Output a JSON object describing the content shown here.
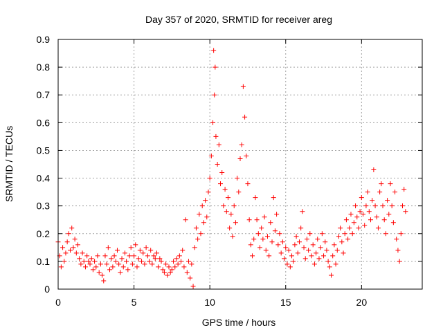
{
  "chart_data": {
    "type": "scatter",
    "title": "Day 357 of 2020, SRMTID for receiver areg",
    "xlabel": "GPS time / hours",
    "ylabel": "SRMTID / TECUs",
    "xlim": [
      0,
      24
    ],
    "ylim": [
      0,
      0.9
    ],
    "xticks": [
      0,
      5,
      10,
      15,
      20
    ],
    "xtick_labels": [
      "0",
      "5",
      "10",
      "15",
      "20"
    ],
    "yticks": [
      0,
      0.1,
      0.2,
      0.3,
      0.4,
      0.5,
      0.6,
      0.7,
      0.8,
      0.9
    ],
    "ytick_labels": [
      "0",
      "0.1",
      "0.2",
      "0.3",
      "0.4",
      "0.5",
      "0.6",
      "0.7",
      "0.8",
      "0.9"
    ],
    "grid": true,
    "marker": "+",
    "color": "#ff0000",
    "series": [
      {
        "name": "SRMTID",
        "points": [
          [
            0.0,
            0.17
          ],
          [
            0.1,
            0.12
          ],
          [
            0.2,
            0.08
          ],
          [
            0.3,
            0.15
          ],
          [
            0.4,
            0.1
          ],
          [
            0.5,
            0.13
          ],
          [
            0.6,
            0.17
          ],
          [
            0.7,
            0.2
          ],
          [
            0.8,
            0.14
          ],
          [
            0.9,
            0.22
          ],
          [
            1.0,
            0.15
          ],
          [
            1.1,
            0.18
          ],
          [
            1.2,
            0.13
          ],
          [
            1.3,
            0.16
          ],
          [
            1.4,
            0.11
          ],
          [
            1.5,
            0.09
          ],
          [
            1.6,
            0.13
          ],
          [
            1.7,
            0.1
          ],
          [
            1.8,
            0.08
          ],
          [
            1.9,
            0.12
          ],
          [
            2.0,
            0.1
          ],
          [
            2.1,
            0.09
          ],
          [
            2.2,
            0.11
          ],
          [
            2.3,
            0.07
          ],
          [
            2.4,
            0.1
          ],
          [
            2.5,
            0.08
          ],
          [
            2.6,
            0.12
          ],
          [
            2.7,
            0.06
          ],
          [
            2.8,
            0.09
          ],
          [
            2.9,
            0.05
          ],
          [
            3.0,
            0.03
          ],
          [
            3.1,
            0.12
          ],
          [
            3.2,
            0.09
          ],
          [
            3.3,
            0.15
          ],
          [
            3.4,
            0.07
          ],
          [
            3.5,
            0.11
          ],
          [
            3.6,
            0.08
          ],
          [
            3.7,
            0.12
          ],
          [
            3.8,
            0.1
          ],
          [
            3.9,
            0.14
          ],
          [
            4.0,
            0.09
          ],
          [
            4.1,
            0.06
          ],
          [
            4.2,
            0.11
          ],
          [
            4.3,
            0.08
          ],
          [
            4.4,
            0.13
          ],
          [
            4.5,
            0.1
          ],
          [
            4.6,
            0.07
          ],
          [
            4.7,
            0.12
          ],
          [
            4.8,
            0.15
          ],
          [
            4.9,
            0.09
          ],
          [
            5.0,
            0.12
          ],
          [
            5.1,
            0.16
          ],
          [
            5.2,
            0.08
          ],
          [
            5.3,
            0.11
          ],
          [
            5.4,
            0.14
          ],
          [
            5.5,
            0.1
          ],
          [
            5.6,
            0.13
          ],
          [
            5.7,
            0.09
          ],
          [
            5.8,
            0.15
          ],
          [
            5.9,
            0.12
          ],
          [
            6.0,
            0.1
          ],
          [
            6.1,
            0.14
          ],
          [
            6.2,
            0.09
          ],
          [
            6.3,
            0.12
          ],
          [
            6.4,
            0.11
          ],
          [
            6.5,
            0.13
          ],
          [
            6.6,
            0.08
          ],
          [
            6.7,
            0.11
          ],
          [
            6.8,
            0.1
          ],
          [
            6.9,
            0.07
          ],
          [
            7.0,
            0.06
          ],
          [
            7.1,
            0.09
          ],
          [
            7.2,
            0.05
          ],
          [
            7.3,
            0.08
          ],
          [
            7.4,
            0.06
          ],
          [
            7.5,
            0.07
          ],
          [
            7.6,
            0.1
          ],
          [
            7.7,
            0.08
          ],
          [
            7.8,
            0.11
          ],
          [
            7.9,
            0.09
          ],
          [
            8.0,
            0.12
          ],
          [
            8.1,
            0.1
          ],
          [
            8.2,
            0.14
          ],
          [
            8.3,
            0.08
          ],
          [
            8.4,
            0.25
          ],
          [
            8.5,
            0.06
          ],
          [
            8.6,
            0.1
          ],
          [
            8.7,
            0.04
          ],
          [
            8.8,
            0.09
          ],
          [
            8.9,
            0.01
          ],
          [
            9.0,
            0.15
          ],
          [
            9.1,
            0.22
          ],
          [
            9.2,
            0.18
          ],
          [
            9.3,
            0.27
          ],
          [
            9.4,
            0.2
          ],
          [
            9.5,
            0.3
          ],
          [
            9.6,
            0.24
          ],
          [
            9.7,
            0.32
          ],
          [
            9.8,
            0.26
          ],
          [
            9.9,
            0.35
          ],
          [
            10.0,
            0.4
          ],
          [
            10.1,
            0.48
          ],
          [
            10.2,
            0.6
          ],
          [
            10.25,
            0.86
          ],
          [
            10.3,
            0.7
          ],
          [
            10.35,
            0.8
          ],
          [
            10.4,
            0.55
          ],
          [
            10.5,
            0.45
          ],
          [
            10.6,
            0.52
          ],
          [
            10.7,
            0.38
          ],
          [
            10.8,
            0.42
          ],
          [
            10.9,
            0.3
          ],
          [
            11.0,
            0.36
          ],
          [
            11.1,
            0.28
          ],
          [
            11.2,
            0.33
          ],
          [
            11.3,
            0.22
          ],
          [
            11.4,
            0.27
          ],
          [
            11.5,
            0.19
          ],
          [
            11.6,
            0.3
          ],
          [
            11.7,
            0.24
          ],
          [
            11.8,
            0.4
          ],
          [
            11.9,
            0.35
          ],
          [
            12.0,
            0.47
          ],
          [
            12.1,
            0.52
          ],
          [
            12.2,
            0.73
          ],
          [
            12.3,
            0.62
          ],
          [
            12.4,
            0.48
          ],
          [
            12.5,
            0.38
          ],
          [
            12.6,
            0.25
          ],
          [
            12.7,
            0.16
          ],
          [
            12.8,
            0.12
          ],
          [
            12.9,
            0.18
          ],
          [
            13.0,
            0.33
          ],
          [
            13.1,
            0.25
          ],
          [
            13.2,
            0.2
          ],
          [
            13.3,
            0.15
          ],
          [
            13.4,
            0.22
          ],
          [
            13.5,
            0.18
          ],
          [
            13.6,
            0.26
          ],
          [
            13.7,
            0.14
          ],
          [
            13.8,
            0.19
          ],
          [
            13.9,
            0.12
          ],
          [
            14.0,
            0.24
          ],
          [
            14.1,
            0.17
          ],
          [
            14.2,
            0.33
          ],
          [
            14.3,
            0.21
          ],
          [
            14.4,
            0.27
          ],
          [
            14.5,
            0.16
          ],
          [
            14.6,
            0.2
          ],
          [
            14.7,
            0.13
          ],
          [
            14.8,
            0.17
          ],
          [
            14.9,
            0.11
          ],
          [
            15.0,
            0.15
          ],
          [
            15.1,
            0.09
          ],
          [
            15.2,
            0.14
          ],
          [
            15.3,
            0.08
          ],
          [
            15.4,
            0.12
          ],
          [
            15.5,
            0.1
          ],
          [
            15.6,
            0.16
          ],
          [
            15.7,
            0.19
          ],
          [
            15.8,
            0.13
          ],
          [
            15.9,
            0.17
          ],
          [
            16.0,
            0.22
          ],
          [
            16.1,
            0.28
          ],
          [
            16.2,
            0.15
          ],
          [
            16.3,
            0.11
          ],
          [
            16.4,
            0.18
          ],
          [
            16.5,
            0.14
          ],
          [
            16.6,
            0.2
          ],
          [
            16.7,
            0.12
          ],
          [
            16.8,
            0.16
          ],
          [
            16.9,
            0.09
          ],
          [
            17.0,
            0.13
          ],
          [
            17.1,
            0.18
          ],
          [
            17.2,
            0.11
          ],
          [
            17.3,
            0.15
          ],
          [
            17.4,
            0.2
          ],
          [
            17.5,
            0.12
          ],
          [
            17.6,
            0.17
          ],
          [
            17.7,
            0.14
          ],
          [
            17.8,
            0.1
          ],
          [
            17.9,
            0.08
          ],
          [
            18.0,
            0.05
          ],
          [
            18.1,
            0.12
          ],
          [
            18.2,
            0.16
          ],
          [
            18.3,
            0.09
          ],
          [
            18.4,
            0.14
          ],
          [
            18.5,
            0.19
          ],
          [
            18.6,
            0.22
          ],
          [
            18.7,
            0.17
          ],
          [
            18.8,
            0.13
          ],
          [
            18.9,
            0.2
          ],
          [
            19.0,
            0.25
          ],
          [
            19.1,
            0.18
          ],
          [
            19.2,
            0.22
          ],
          [
            19.3,
            0.27
          ],
          [
            19.4,
            0.2
          ],
          [
            19.5,
            0.24
          ],
          [
            19.6,
            0.3
          ],
          [
            19.7,
            0.26
          ],
          [
            19.8,
            0.22
          ],
          [
            19.9,
            0.28
          ],
          [
            20.0,
            0.33
          ],
          [
            20.1,
            0.27
          ],
          [
            20.2,
            0.23
          ],
          [
            20.3,
            0.3
          ],
          [
            20.4,
            0.35
          ],
          [
            20.5,
            0.28
          ],
          [
            20.6,
            0.25
          ],
          [
            20.7,
            0.32
          ],
          [
            20.8,
            0.43
          ],
          [
            20.9,
            0.3
          ],
          [
            21.0,
            0.26
          ],
          [
            21.1,
            0.22
          ],
          [
            21.2,
            0.35
          ],
          [
            21.3,
            0.38
          ],
          [
            21.4,
            0.3
          ],
          [
            21.5,
            0.25
          ],
          [
            21.6,
            0.2
          ],
          [
            21.7,
            0.32
          ],
          [
            21.8,
            0.27
          ],
          [
            21.9,
            0.38
          ],
          [
            22.0,
            0.3
          ],
          [
            22.1,
            0.24
          ],
          [
            22.2,
            0.35
          ],
          [
            22.3,
            0.18
          ],
          [
            22.4,
            0.14
          ],
          [
            22.5,
            0.1
          ],
          [
            22.6,
            0.2
          ],
          [
            22.7,
            0.3
          ],
          [
            22.8,
            0.36
          ],
          [
            22.9,
            0.28
          ]
        ]
      }
    ]
  }
}
